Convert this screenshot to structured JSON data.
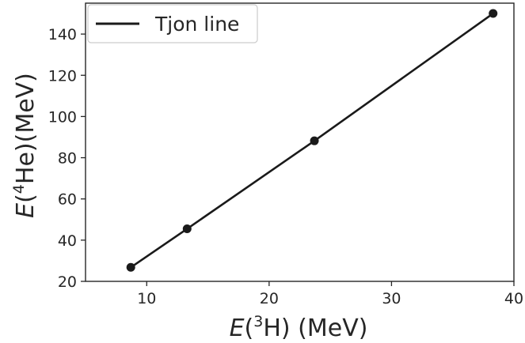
{
  "chart_data": {
    "type": "line",
    "title": "",
    "xlabel_text": "(",
    "xlabel_italic": "E",
    "xlabel_sup": "3",
    "xlabel_rest": "H) (MeV)",
    "ylabel_italic": "E",
    "ylabel_text": "(",
    "ylabel_sup": "4",
    "ylabel_rest": "He)(MeV)",
    "xlim": [
      5,
      40
    ],
    "ylim": [
      20,
      155
    ],
    "xticks": [
      "10",
      "20",
      "30",
      "40"
    ],
    "yticks": [
      "20",
      "40",
      "60",
      "80",
      "100",
      "120",
      "140"
    ],
    "xtick_values": [
      10,
      20,
      30,
      40
    ],
    "ytick_values": [
      20,
      40,
      60,
      80,
      100,
      120,
      140
    ],
    "grid": false,
    "legend_position": "top-left",
    "series": [
      {
        "name": "Tjon line",
        "color": "#1a1a1a",
        "x": [
          8.7,
          13.3,
          23.7,
          38.3
        ],
        "y": [
          26.8,
          45.5,
          88.2,
          150.0
        ]
      }
    ]
  }
}
